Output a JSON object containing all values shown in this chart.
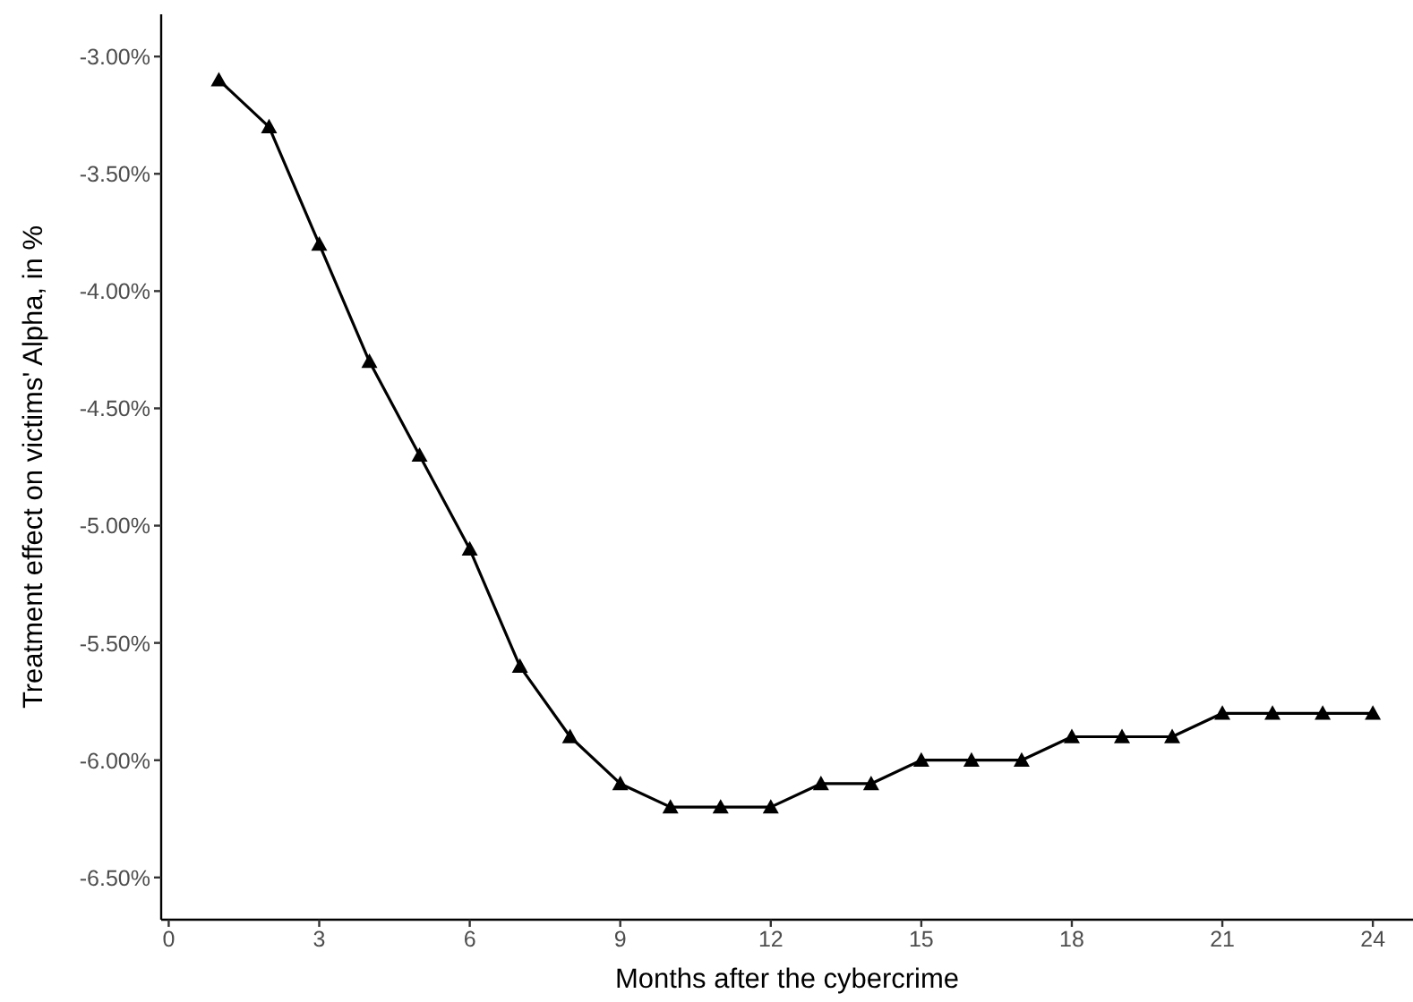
{
  "chart_data": {
    "type": "line",
    "xlabel": "Months after the cybercrime",
    "ylabel": "Treatment effect on victims' Alpha, in %",
    "x": [
      1,
      2,
      3,
      4,
      5,
      6,
      7,
      8,
      9,
      10,
      11,
      12,
      13,
      14,
      15,
      16,
      17,
      18,
      19,
      20,
      21,
      22,
      23,
      24
    ],
    "series": [
      {
        "color": "#000000",
        "values": [
          -3.1,
          -3.3,
          -3.8,
          -4.3,
          -4.7,
          -5.1,
          -5.6,
          -5.9,
          -6.1,
          -6.2,
          -6.2,
          -6.2,
          -6.1,
          -6.1,
          -6.0,
          -6.0,
          -6.0,
          -5.9,
          -5.9,
          -5.9,
          -5.8,
          -5.8,
          -5.8,
          -5.8
        ]
      }
    ],
    "xlim": [
      -0.15,
      24.8
    ],
    "xticks": [
      0,
      3,
      6,
      9,
      12,
      15,
      18,
      21,
      24
    ],
    "ylim": [
      -6.68,
      -2.82
    ],
    "yticks": [
      {
        "value": -3.0,
        "label": "-3.00%"
      },
      {
        "value": -3.5,
        "label": "-3.50%"
      },
      {
        "value": -4.0,
        "label": "-4.00%"
      },
      {
        "value": -4.5,
        "label": "-4.50%"
      },
      {
        "value": -5.0,
        "label": "-5.00%"
      },
      {
        "value": -5.5,
        "label": "-5.50%"
      },
      {
        "value": -6.0,
        "label": "-6.00%"
      },
      {
        "value": -6.5,
        "label": "-6.50%"
      }
    ],
    "grid": false,
    "legend": false,
    "marker": "triangle",
    "line_style": "solid"
  }
}
